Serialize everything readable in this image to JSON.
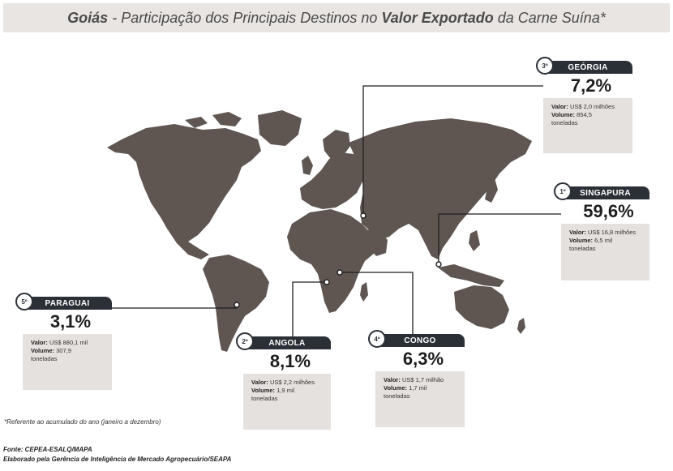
{
  "title": {
    "state": "Goiás",
    "dash": " - ",
    "part1": "Participação dos Principais Destinos no ",
    "bold": "Valor Exportado",
    "part2": " da Carne Suína*"
  },
  "destinations": [
    {
      "rank": "1º",
      "country": "SINGAPURA",
      "share": "59,6%",
      "valor_label": "Valor:",
      "valor": "US$ 16,8 milhões",
      "volume_label": "Volume:",
      "volume": "6,5 mil",
      "volume_unit": "toneladas"
    },
    {
      "rank": "2º",
      "country": "ANGOLA",
      "share": "8,1%",
      "valor_label": "Valor:",
      "valor": "US$ 2,2 milhões",
      "volume_label": "Volume:",
      "volume": "1,9 mil",
      "volume_unit": "toneladas"
    },
    {
      "rank": "3º",
      "country": "GEÓRGIA",
      "share": "7,2%",
      "valor_label": "Valor:",
      "valor": "US$ 2,0 milhões",
      "volume_label": "Volume:",
      "volume": "854,5",
      "volume_unit": "toneladas"
    },
    {
      "rank": "4º",
      "country": "CONGO",
      "share": "6,3%",
      "valor_label": "Valor:",
      "valor": "US$ 1,7 milhão",
      "volume_label": "Volume:",
      "volume": "1,7 mil",
      "volume_unit": "toneladas"
    },
    {
      "rank": "5º",
      "country": "PARAGUAI",
      "share": "3,1%",
      "valor_label": "Valor:",
      "valor": "US$ 880,1 mil",
      "volume_label": "Volume:",
      "volume": "307,9",
      "volume_unit": "toneladas"
    }
  ],
  "footnote": "*Referente ao acumulado do ano (janeiro a dezembro)",
  "source": {
    "line1": "Fonte: CEPEA-ESALQ/MAPA",
    "line2": "Elaborado pela Gerência de Inteligência de Mercado Agropecuário/SEAPA"
  },
  "colors": {
    "land": "#5f5652",
    "card_header": "#2b3037",
    "card_body": "#e5e1df",
    "title_bg": "#e9e5e3"
  }
}
